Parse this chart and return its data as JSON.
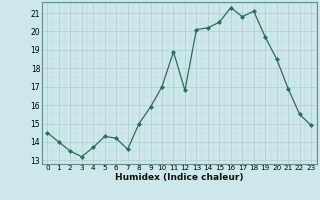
{
  "x": [
    0,
    1,
    2,
    3,
    4,
    5,
    6,
    7,
    8,
    9,
    10,
    11,
    12,
    13,
    14,
    15,
    16,
    17,
    18,
    19,
    20,
    21,
    22,
    23
  ],
  "y": [
    14.5,
    14.0,
    13.5,
    13.2,
    13.7,
    14.3,
    14.2,
    13.6,
    15.0,
    15.9,
    17.0,
    18.9,
    16.8,
    20.1,
    20.2,
    20.5,
    21.3,
    20.8,
    21.1,
    19.7,
    18.5,
    16.9,
    15.5,
    14.9
  ],
  "line_color": "#2e6b5e",
  "marker": "D",
  "marker_size": 2.0,
  "bg_color": "#cce8ea",
  "grid_color_major": "#b0ccce",
  "grid_color_minor": "#c0d8da",
  "xlabel": "Humidex (Indice chaleur)",
  "ylabel_ticks": [
    13,
    14,
    15,
    16,
    17,
    18,
    19,
    20,
    21
  ],
  "ylim": [
    12.8,
    21.6
  ],
  "xlim": [
    -0.5,
    23.5
  ],
  "xtick_labels": [
    "0",
    "1",
    "2",
    "3",
    "4",
    "5",
    "6",
    "7",
    "8",
    "9",
    "10",
    "11",
    "12",
    "13",
    "14",
    "15",
    "16",
    "17",
    "18",
    "19",
    "20",
    "21",
    "22",
    "23"
  ]
}
